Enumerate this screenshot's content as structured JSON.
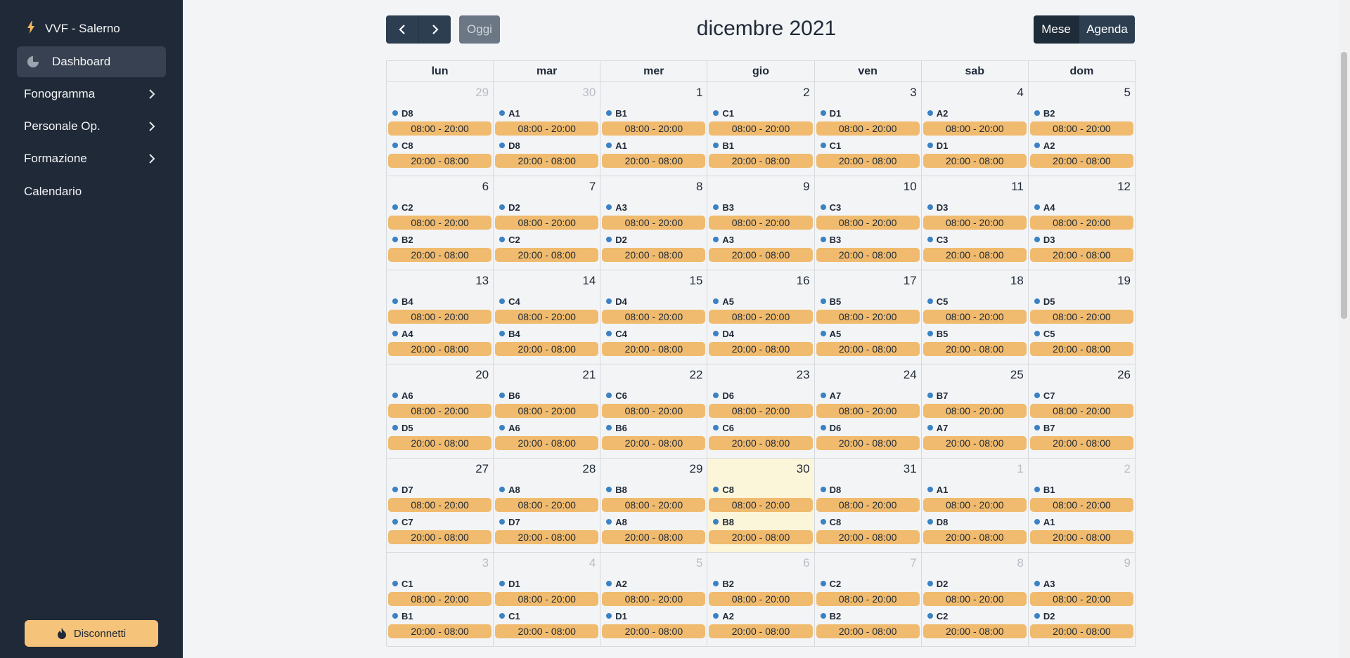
{
  "app": {
    "title": "VVF - Salerno"
  },
  "sidebar": {
    "items": [
      {
        "label": "Dashboard"
      },
      {
        "label": "Fonogramma"
      },
      {
        "label": "Personale Op."
      },
      {
        "label": "Formazione"
      },
      {
        "label": "Calendario"
      }
    ],
    "logout_label": "Disconnetti"
  },
  "toolbar": {
    "today_label": "Oggi",
    "title": "dicembre 2021",
    "views": [
      "Mese",
      "Agenda"
    ]
  },
  "calendar": {
    "weekdays": [
      "lun",
      "mar",
      "mer",
      "gio",
      "ven",
      "sab",
      "dom"
    ],
    "day_shift": "08:00 - 20:00",
    "night_shift": "20:00 - 08:00",
    "weeks": [
      [
        {
          "n": "29",
          "other": true,
          "d": "D8",
          "nt": "C8"
        },
        {
          "n": "30",
          "other": true,
          "d": "A1",
          "nt": "D8"
        },
        {
          "n": "1",
          "d": "B1",
          "nt": "A1"
        },
        {
          "n": "2",
          "d": "C1",
          "nt": "B1"
        },
        {
          "n": "3",
          "d": "D1",
          "nt": "C1"
        },
        {
          "n": "4",
          "d": "A2",
          "nt": "D1"
        },
        {
          "n": "5",
          "d": "B2",
          "nt": "A2"
        }
      ],
      [
        {
          "n": "6",
          "d": "C2",
          "nt": "B2"
        },
        {
          "n": "7",
          "d": "D2",
          "nt": "C2"
        },
        {
          "n": "8",
          "d": "A3",
          "nt": "D2"
        },
        {
          "n": "9",
          "d": "B3",
          "nt": "A3"
        },
        {
          "n": "10",
          "d": "C3",
          "nt": "B3"
        },
        {
          "n": "11",
          "d": "D3",
          "nt": "C3"
        },
        {
          "n": "12",
          "d": "A4",
          "nt": "D3"
        }
      ],
      [
        {
          "n": "13",
          "d": "B4",
          "nt": "A4"
        },
        {
          "n": "14",
          "d": "C4",
          "nt": "B4"
        },
        {
          "n": "15",
          "d": "D4",
          "nt": "C4"
        },
        {
          "n": "16",
          "d": "A5",
          "nt": "D4"
        },
        {
          "n": "17",
          "d": "B5",
          "nt": "A5"
        },
        {
          "n": "18",
          "d": "C5",
          "nt": "B5"
        },
        {
          "n": "19",
          "d": "D5",
          "nt": "C5"
        }
      ],
      [
        {
          "n": "20",
          "d": "A6",
          "nt": "D5"
        },
        {
          "n": "21",
          "d": "B6",
          "nt": "A6"
        },
        {
          "n": "22",
          "d": "C6",
          "nt": "B6"
        },
        {
          "n": "23",
          "d": "D6",
          "nt": "C6"
        },
        {
          "n": "24",
          "d": "A7",
          "nt": "D6"
        },
        {
          "n": "25",
          "d": "B7",
          "nt": "A7"
        },
        {
          "n": "26",
          "d": "C7",
          "nt": "B7"
        }
      ],
      [
        {
          "n": "27",
          "d": "D7",
          "nt": "C7"
        },
        {
          "n": "28",
          "d": "A8",
          "nt": "D7"
        },
        {
          "n": "29",
          "d": "B8",
          "nt": "A8"
        },
        {
          "n": "30",
          "today": true,
          "d": "C8",
          "nt": "B8"
        },
        {
          "n": "31",
          "d": "D8",
          "nt": "C8"
        },
        {
          "n": "1",
          "other": true,
          "d": "A1",
          "nt": "D8"
        },
        {
          "n": "2",
          "other": true,
          "d": "B1",
          "nt": "A1"
        }
      ],
      [
        {
          "n": "3",
          "other": true,
          "d": "C1",
          "nt": "B1"
        },
        {
          "n": "4",
          "other": true,
          "d": "D1",
          "nt": "C1"
        },
        {
          "n": "5",
          "other": true,
          "d": "A2",
          "nt": "D1"
        },
        {
          "n": "6",
          "other": true,
          "d": "B2",
          "nt": "A2"
        },
        {
          "n": "7",
          "other": true,
          "d": "C2",
          "nt": "B2"
        },
        {
          "n": "8",
          "other": true,
          "d": "D2",
          "nt": "C2"
        },
        {
          "n": "9",
          "other": true,
          "d": "A3",
          "nt": "D2"
        }
      ]
    ]
  }
}
